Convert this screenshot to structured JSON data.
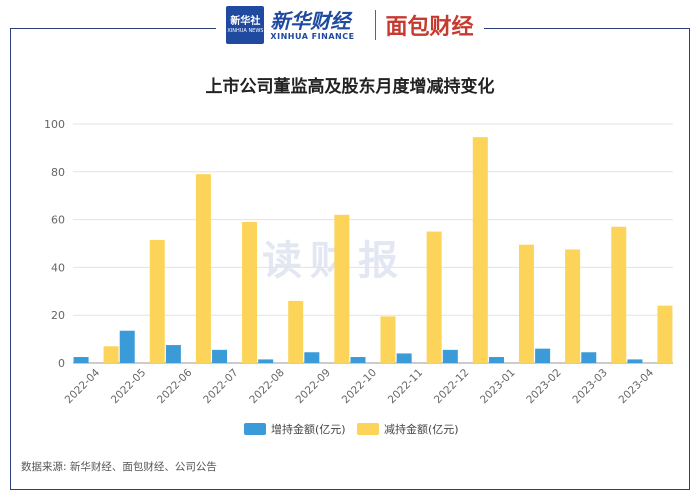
{
  "header": {
    "xinhua_logo_line1": "新华社",
    "xinhua_logo_line2": "XINHUA NEWS",
    "brand_cn": "新华财经",
    "brand_en": "XINHUA FINANCE",
    "partner_brand": "面包财经"
  },
  "watermark": "读财报",
  "source": "数据来源: 新华财经、面包财经、公司公告",
  "colors": {
    "increase": "#3b9bd8",
    "decrease": "#fcd45a",
    "frame": "#2a3f7a",
    "partner": "#c63a2f"
  },
  "chart_data": {
    "type": "bar",
    "title": "上市公司董监高及股东月度增减持变化",
    "xlabel": "",
    "ylabel": "",
    "ylim": [
      0,
      100
    ],
    "yticks": [
      0,
      20,
      40,
      60,
      80,
      100
    ],
    "grid": true,
    "legend_position": "bottom",
    "categories": [
      "2022-04",
      "2022-05",
      "2022-06",
      "2022-07",
      "2022-08",
      "2022-09",
      "2022-10",
      "2022-11",
      "2022-12",
      "2023-01",
      "2023-02",
      "2023-03",
      "2023-04"
    ],
    "series": [
      {
        "name": "增持金额(亿元)",
        "values": [
          2.5,
          13.5,
          7.5,
          5.5,
          1.5,
          4.5,
          2.5,
          4,
          5.5,
          2.5,
          6,
          4.5,
          1.5
        ]
      },
      {
        "name": "减持金额(亿元)",
        "values": [
          7,
          51.5,
          79,
          59,
          26,
          62,
          19.5,
          55,
          94.5,
          49.5,
          47.5,
          57,
          24
        ]
      }
    ]
  }
}
